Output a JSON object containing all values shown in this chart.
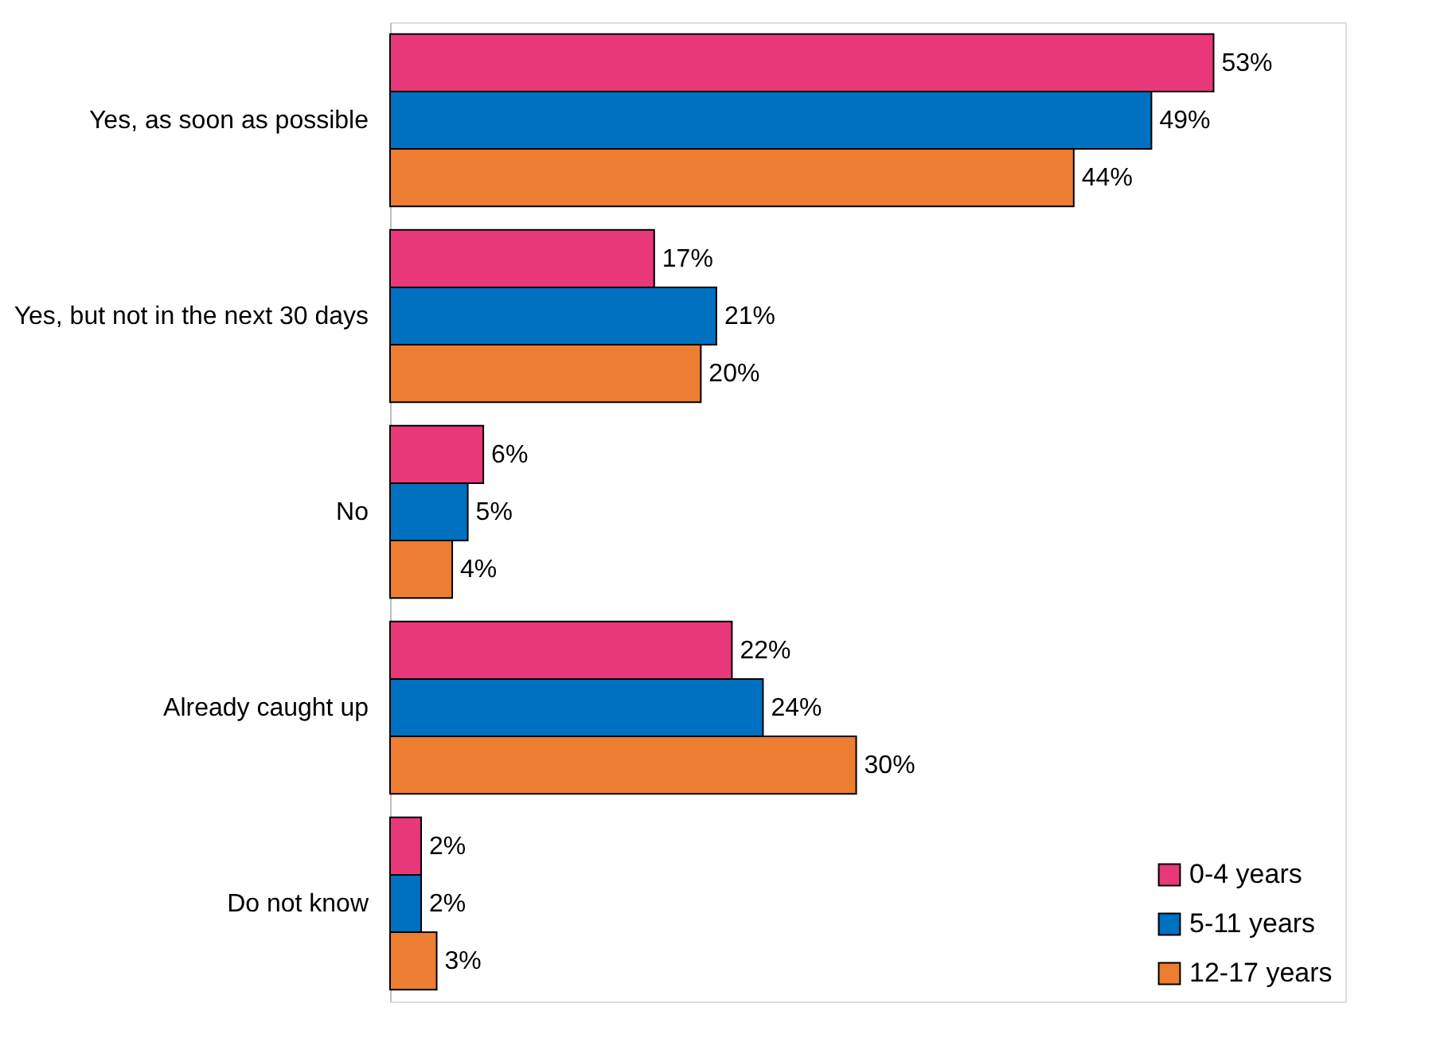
{
  "chart_data": {
    "type": "bar",
    "orientation": "horizontal",
    "categories": [
      "Yes, as soon as possible",
      "Yes, but not in the next 30 days",
      "No",
      "Already caught up",
      "Do not know"
    ],
    "series": [
      {
        "name": "0-4 years",
        "color": "#e8387a",
        "values": [
          53,
          17,
          6,
          22,
          2
        ],
        "value_labels": [
          "53%",
          "17%",
          "6%",
          "22%",
          "2%"
        ]
      },
      {
        "name": "5-11 years",
        "color": "#0070c0",
        "values": [
          49,
          21,
          5,
          24,
          2
        ],
        "value_labels": [
          "49%",
          "21%",
          "5%",
          "24%",
          "2%"
        ]
      },
      {
        "name": "12-17 years",
        "color": "#ed7d31",
        "values": [
          44,
          20,
          4,
          30,
          3
        ],
        "value_labels": [
          "44%",
          "20%",
          "4%",
          "30%",
          "3%"
        ]
      }
    ],
    "legend": "bottom right"
  }
}
